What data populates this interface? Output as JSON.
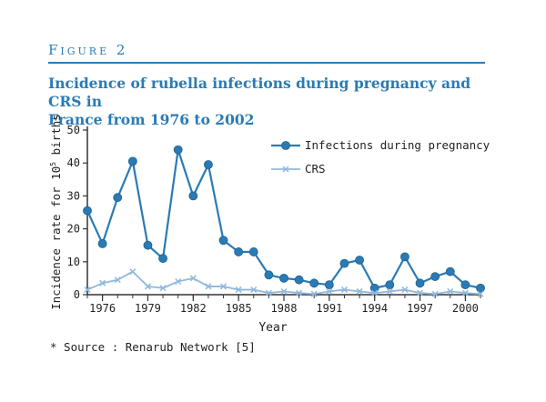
{
  "figure": {
    "label": "Figure 2",
    "title_line1": "Incidence of rubella infections during pregnancy and CRS in",
    "title_line2": "France from 1976 to 2002",
    "source": "* Source : Renarub Network [5]"
  },
  "chart_data": {
    "type": "line",
    "title": "Incidence of rubella infections during pregnancy and CRS in France from 1976 to 2002",
    "xlabel": "Year",
    "ylabel_prefix": "Incidence rate for 10",
    "ylabel_sup": "5",
    "ylabel_suffix": " births",
    "xlim": [
      1975,
      2001
    ],
    "ylim": [
      0,
      50
    ],
    "x_ticks": [
      1976,
      1979,
      1982,
      1985,
      1988,
      1991,
      1994,
      1997,
      2000
    ],
    "y_ticks": [
      0,
      10,
      20,
      30,
      40,
      50
    ],
    "grid": false,
    "legend_position": "top-right",
    "x": [
      1975,
      1976,
      1977,
      1978,
      1979,
      1980,
      1981,
      1982,
      1983,
      1984,
      1985,
      1986,
      1987,
      1988,
      1989,
      1990,
      1991,
      1992,
      1993,
      1994,
      1995,
      1996,
      1997,
      1998,
      1999,
      2000,
      2001
    ],
    "series": [
      {
        "name": "Infections during pregnancy",
        "color": "#2a7bb5",
        "marker": "circle",
        "values": [
          25.5,
          15.5,
          29.5,
          40.5,
          15,
          11,
          44,
          30,
          39.5,
          16.5,
          13,
          13,
          6,
          5,
          4.5,
          3.5,
          3,
          9.5,
          10.5,
          2,
          3,
          11.5,
          3.5,
          5.5,
          7,
          3,
          2
        ]
      },
      {
        "name": "CRS",
        "color": "#8fb8dd",
        "marker": "x",
        "values": [
          1.5,
          3.5,
          4.5,
          7,
          2.5,
          2,
          4,
          5,
          2.5,
          2.5,
          1.5,
          1.5,
          0.5,
          1,
          0.5,
          0.2,
          1,
          1.5,
          1,
          0.5,
          1,
          1.5,
          0.5,
          0.2,
          1,
          0.5,
          0.2
        ]
      }
    ]
  }
}
